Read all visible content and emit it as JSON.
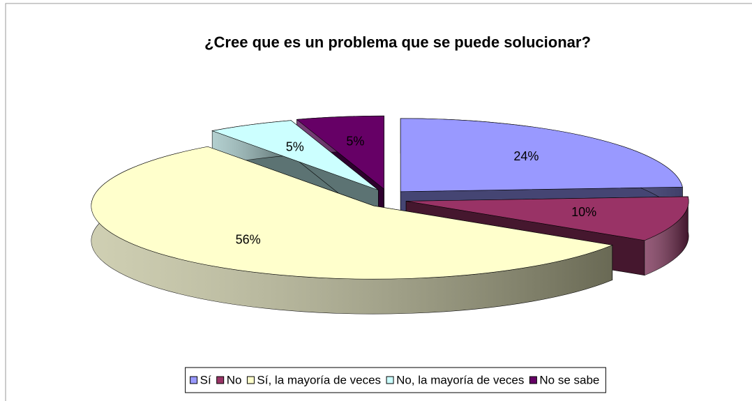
{
  "chart_data": {
    "type": "pie",
    "title": "¿Cree que es un problema que se puede solucionar?",
    "categories": [
      "Sí",
      "No",
      "Sí, la mayoría de veces",
      "No, la mayoría de veces",
      "No se sabe"
    ],
    "values": [
      24,
      10,
      56,
      5,
      5
    ],
    "value_labels": [
      "24%",
      "10%",
      "56%",
      "5%",
      "5%"
    ],
    "colors": [
      "#9999ff",
      "#993366",
      "#ffffcc",
      "#ccffff",
      "#660066"
    ],
    "legend": "bottom"
  }
}
